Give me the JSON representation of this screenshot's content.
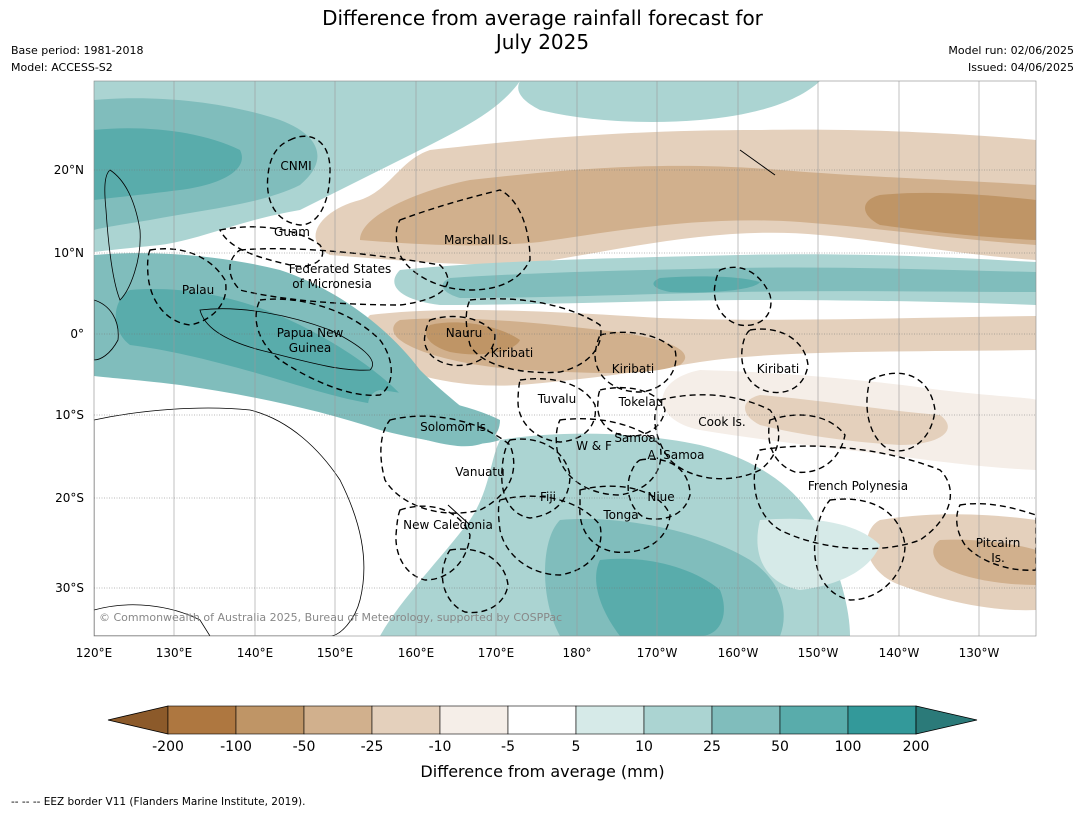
{
  "header": {
    "title_line1": "Difference from average rainfall forecast for",
    "title_line2": "July 2025",
    "base_period": "Base period: 1981-2018",
    "model": "Model: ACCESS-S2",
    "model_run": "Model run: 02/06/2025",
    "issued": "Issued: 04/06/2025"
  },
  "map": {
    "lon_ticks": [
      "120°E",
      "130°E",
      "140°E",
      "150°E",
      "160°E",
      "170°E",
      "180°",
      "170°W",
      "160°W",
      "150°W",
      "140°W",
      "130°W"
    ],
    "lat_ticks": [
      "20°N",
      "10°N",
      "0°",
      "10°S",
      "20°S",
      "30°S"
    ],
    "copyright": "© Commonwealth of Australia 2025, Bureau of Meteorology, supported by COSPPac",
    "labels": [
      {
        "name": "CNMI"
      },
      {
        "name": "Guam"
      },
      {
        "name": "Marshall Is."
      },
      {
        "name": "Federated States"
      },
      {
        "name": "of Micronesia"
      },
      {
        "name": "Palau"
      },
      {
        "name": "Papua New"
      },
      {
        "name": "Guinea"
      },
      {
        "name": "Nauru"
      },
      {
        "name": "Kiribati"
      },
      {
        "name": "Kiribati"
      },
      {
        "name": "Kiribati"
      },
      {
        "name": "Tuvalu"
      },
      {
        "name": "Tokelau"
      },
      {
        "name": "Cook Is."
      },
      {
        "name": "Solomon Is."
      },
      {
        "name": "W & F"
      },
      {
        "name": "Samoa"
      },
      {
        "name": "A. Samoa"
      },
      {
        "name": "Vanuatu"
      },
      {
        "name": "Fiji"
      },
      {
        "name": "Niue"
      },
      {
        "name": "Tonga"
      },
      {
        "name": "French Polynesia"
      },
      {
        "name": "New Caledonia"
      },
      {
        "name": "Pitcairn"
      },
      {
        "name": "Is."
      }
    ]
  },
  "colorbar": {
    "tick_labels": [
      "-200",
      "-100",
      "-50",
      "-25",
      "-10",
      "-5",
      "5",
      "10",
      "25",
      "50",
      "100",
      "200"
    ],
    "colors": [
      "#8c5a2a",
      "#ae7740",
      "#bf9566",
      "#d1b08d",
      "#e4d0bc",
      "#f5eee8",
      "#ffffff",
      "#d6eae8",
      "#abd4d2",
      "#80bdbc",
      "#59acab",
      "#33999a",
      "#2b7a79"
    ],
    "unit_label": "Difference from average (mm)"
  },
  "footer": {
    "legend_text": "--  --  -- EEZ border V11 (Flanders Marine Institute, 2019)."
  }
}
